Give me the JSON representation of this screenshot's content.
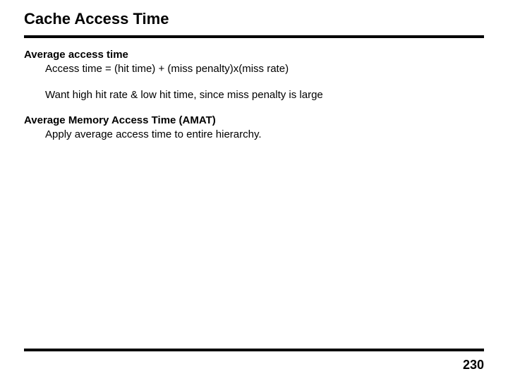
{
  "title": "Cache Access Time",
  "sections": {
    "avg_heading": "Average access time",
    "formula": "Access time = (hit time) + (miss penalty)x(miss rate)",
    "want": "Want high hit rate & low hit time, since miss penalty is large",
    "amat_heading": "Average Memory Access Time (AMAT)",
    "amat_body": "Apply average access time to entire hierarchy."
  },
  "page_number": "230"
}
